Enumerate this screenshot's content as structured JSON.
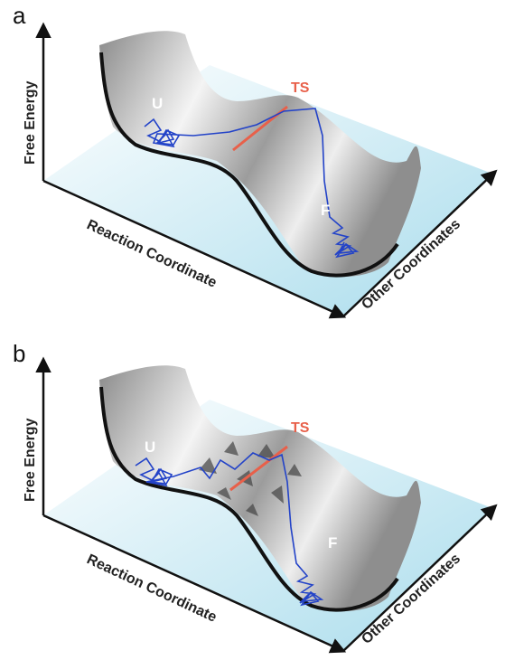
{
  "panels": [
    {
      "label": "a",
      "y_axis": "Free Energy",
      "x_axis": "Reaction Coordinate",
      "z_axis": "Other Coordinates",
      "transition_state": "TS",
      "unfolded": "U",
      "folded": "F"
    },
    {
      "label": "b",
      "y_axis": "Free Energy",
      "x_axis": "Reaction Coordinate",
      "z_axis": "Other Coordinates",
      "transition_state": "TS",
      "unfolded": "U",
      "folded": "F"
    }
  ]
}
